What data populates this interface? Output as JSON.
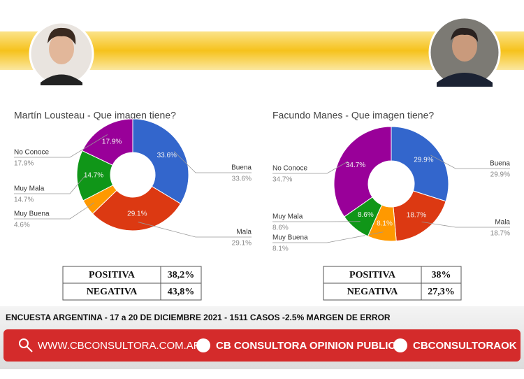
{
  "chart_data": [
    {
      "type": "pie",
      "title": "Martín Lousteau - Que imagen tiene?",
      "categories": [
        "Buena",
        "Mala",
        "Muy Buena",
        "Muy Mala",
        "No Conoce"
      ],
      "values": [
        33.6,
        29.1,
        4.6,
        14.7,
        17.9
      ],
      "value_labels": [
        "33.6%",
        "29.1%",
        "4.6%",
        "14.7%",
        "17.9%"
      ],
      "colors": [
        "#3366cc",
        "#dc3912",
        "#ff9900",
        "#109618",
        "#990099"
      ]
    },
    {
      "type": "pie",
      "title": "Facundo Manes - Que imagen tiene?",
      "categories": [
        "Buena",
        "Mala",
        "Muy Buena",
        "Muy Mala",
        "No Conoce"
      ],
      "values": [
        29.9,
        18.7,
        8.1,
        8.6,
        34.7
      ],
      "value_labels": [
        "29.9%",
        "18.7%",
        "8.1%",
        "8.6%",
        "34.7%"
      ],
      "colors": [
        "#3366cc",
        "#dc3912",
        "#ff9900",
        "#109618",
        "#990099"
      ]
    }
  ],
  "tables": [
    {
      "rows": [
        [
          "POSITIVA",
          "38,2%"
        ],
        [
          "NEGATIVA",
          "43,8%"
        ]
      ]
    },
    {
      "rows": [
        [
          "POSITIVA",
          "38%"
        ],
        [
          "NEGATIVA",
          "27,3%"
        ]
      ]
    }
  ],
  "footer": {
    "note": "ENCUESTA ARGENTINA - 17 a 20 DE DICIEMBRE 2021 - 1511 CASOS -2.5% MARGEN DE ERROR",
    "website": "WWW.CBCONSULTORA.COM.AR",
    "facebook": "CB CONSULTORA OPINION PUBLICA",
    "twitter": "CBCONSULTORAOK"
  }
}
